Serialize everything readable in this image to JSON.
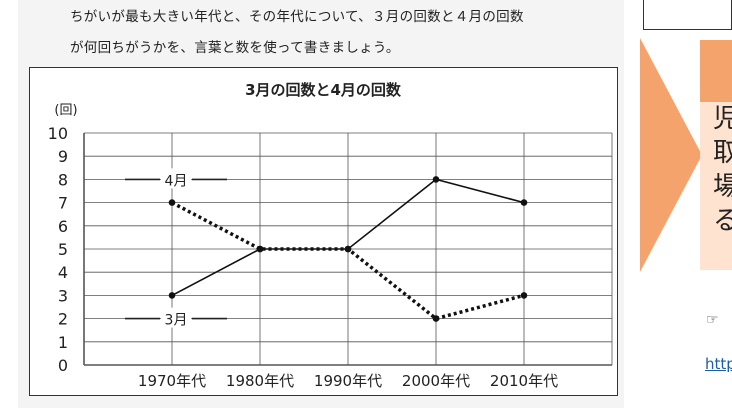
{
  "worksheet": {
    "instruction_line1": "ちがいが最も大きい年代と、その年代について、３月の回数と４月の回数",
    "instruction_line2": "が何回ちがうかを、言葉と数を使って書きましょう。"
  },
  "side": {
    "text_lines": [
      "児",
      "取",
      "場",
      "る"
    ],
    "bullet": "☞",
    "link": "http"
  },
  "colors": {
    "arrow": "#f4a36d",
    "panel_head": "#f4a36d",
    "panel_body": "#fde3d0",
    "link": "#1a5ea8"
  },
  "chart_data": {
    "type": "line",
    "title": "3月の回数と4月の回数",
    "ylabel": "(回)",
    "xlabel": "",
    "categories": [
      "1970年代",
      "1980年代",
      "1990年代",
      "2000年代",
      "2010年代"
    ],
    "ylim": [
      0,
      10
    ],
    "yticks": [
      "0",
      "1",
      "2",
      "3",
      "4",
      "5",
      "6",
      "7",
      "8",
      "9",
      "10"
    ],
    "grid": true,
    "series": [
      {
        "name": "3月",
        "values": [
          3,
          5,
          5,
          8,
          7
        ],
        "style": "solid"
      },
      {
        "name": "4月",
        "values": [
          7,
          5,
          5,
          2,
          3
        ],
        "style": "dotted"
      }
    ]
  }
}
